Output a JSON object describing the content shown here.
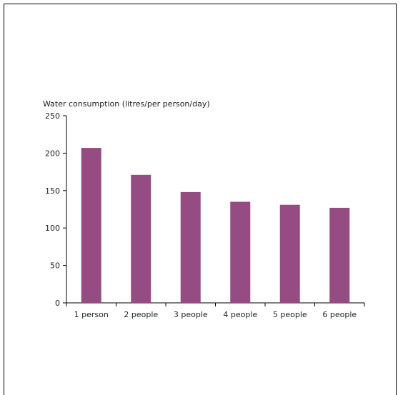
{
  "chart_data": {
    "type": "bar",
    "title": "",
    "ylabel": "Water consumption (litres/per person/day)",
    "xlabel": "",
    "categories": [
      "1 person",
      "2 people",
      "3 people",
      "4 people",
      "5 people",
      "6 people"
    ],
    "values": [
      207,
      171,
      148,
      135,
      131,
      127
    ],
    "ylim": [
      0,
      250
    ],
    "yticks": [
      0,
      50,
      100,
      150,
      200,
      250
    ],
    "grid": false,
    "bar_color": "#944c82"
  }
}
